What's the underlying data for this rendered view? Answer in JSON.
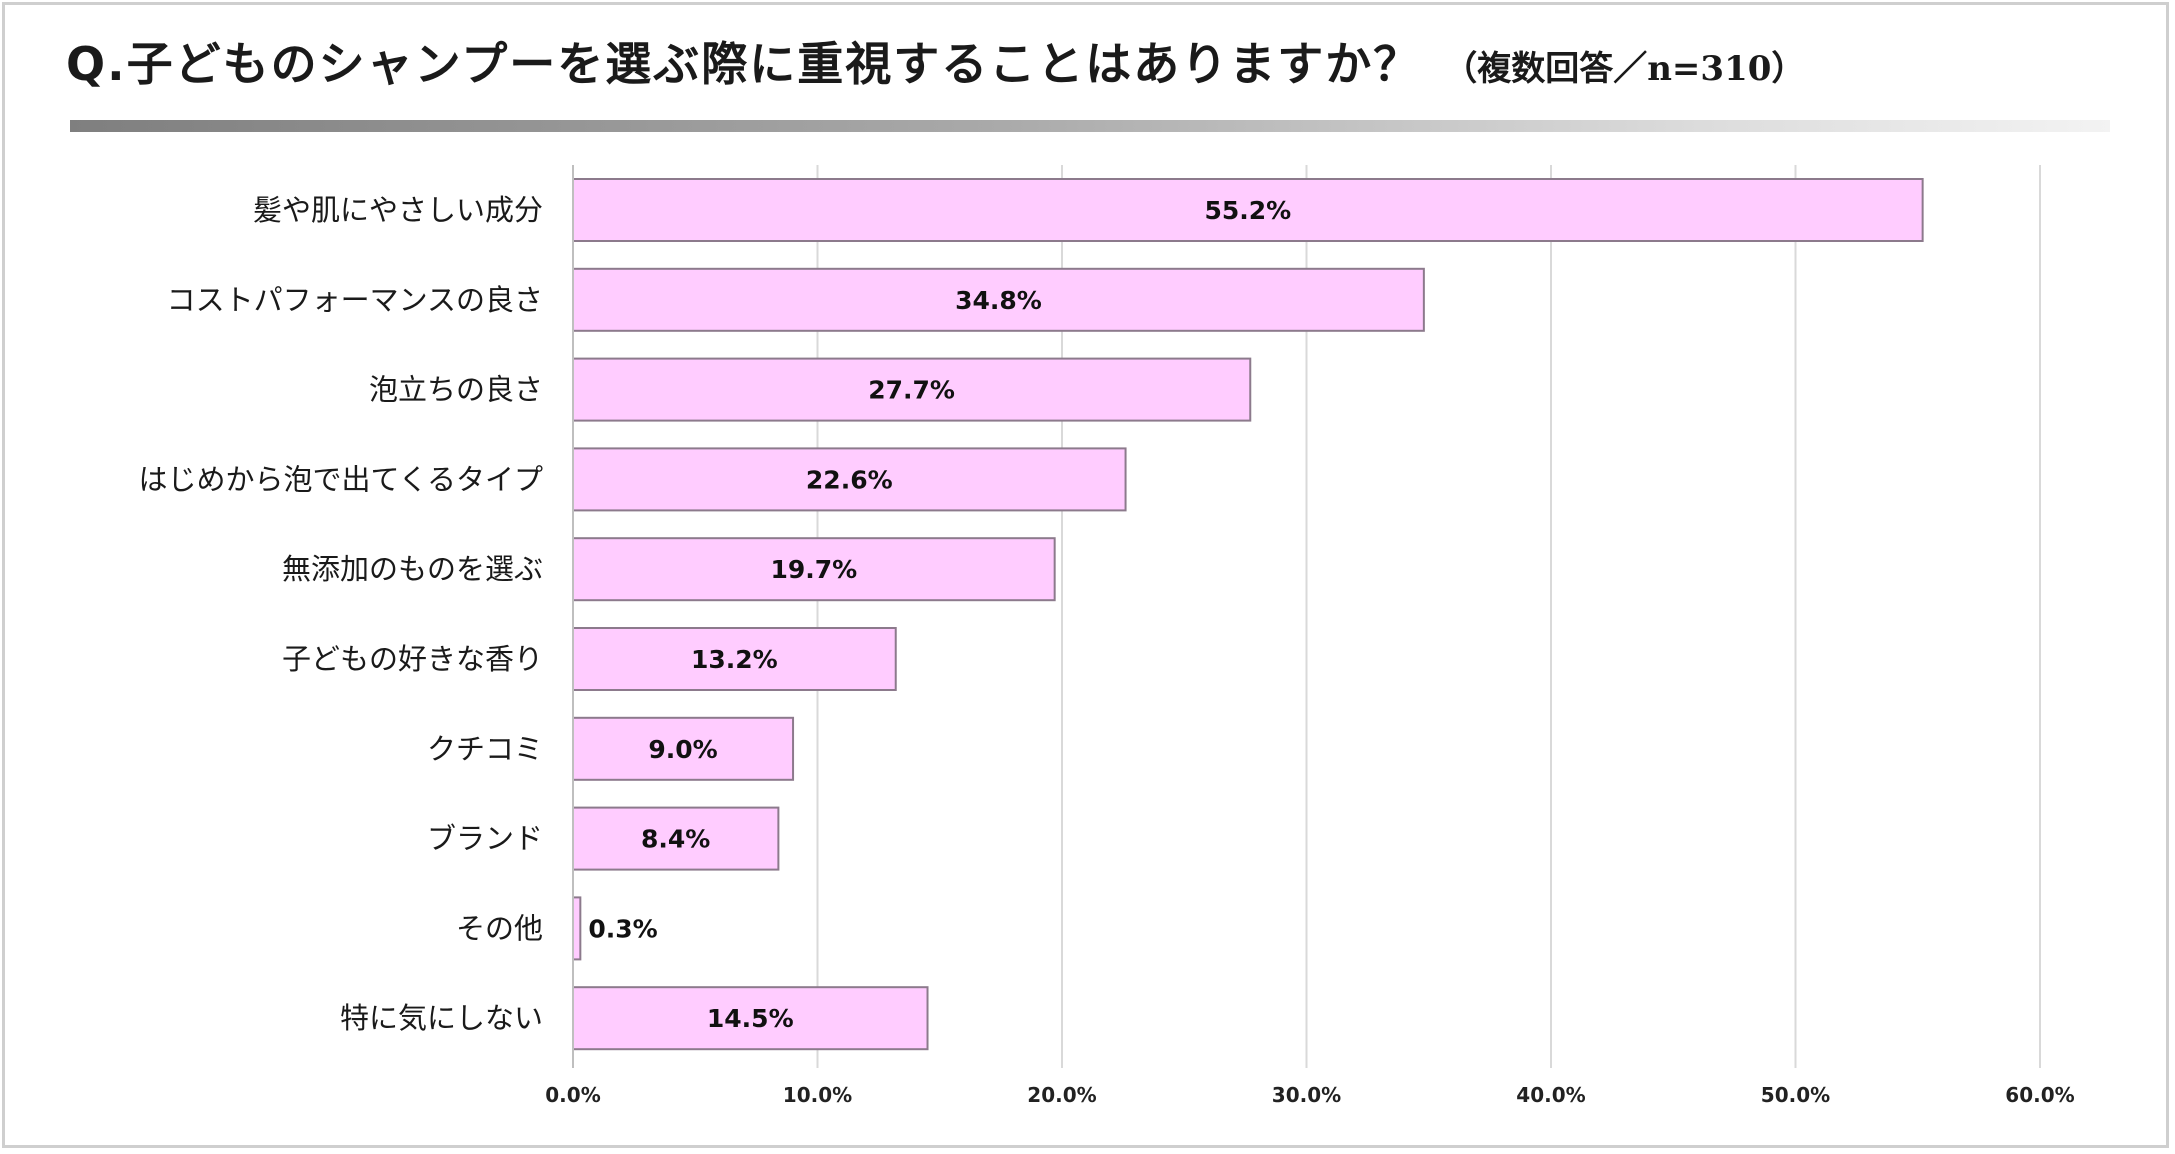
{
  "header": {
    "title": "Q.子どものシャンプーを選ぶ際に重視することはありますか？",
    "subtitle": "（複数回答／n=310）"
  },
  "chart_data": {
    "type": "bar",
    "orientation": "horizontal",
    "title": "Q.子どものシャンプーを選ぶ際に重視することはありますか？",
    "subtitle": "（複数回答／n=310）",
    "categories": [
      "髪や肌にやさしい成分",
      "コストパフォーマンスの良さ",
      "泡立ちの良さ",
      "はじめから泡で出てくるタイプ",
      "無添加のものを選ぶ",
      "子どもの好きな香り",
      "クチコミ",
      "ブランド",
      "その他",
      "特に気にしない"
    ],
    "values": [
      55.2,
      34.8,
      27.7,
      22.6,
      19.7,
      13.2,
      9.0,
      8.4,
      0.3,
      14.5
    ],
    "value_labels": [
      "55.2%",
      "34.8%",
      "27.7%",
      "22.6%",
      "19.7%",
      "13.2%",
      "9.0%",
      "8.4%",
      "0.3%",
      "14.5%"
    ],
    "xlim": [
      0,
      60
    ],
    "xticks": [
      0,
      10,
      20,
      30,
      40,
      50,
      60
    ],
    "xtick_labels": [
      "0.0%",
      "10.0%",
      "20.0%",
      "30.0%",
      "40.0%",
      "50.0%",
      "60.0%"
    ],
    "xlabel": "",
    "ylabel": "",
    "grid": true,
    "legend": "none",
    "colors": {
      "bar_fill": "#ffccff",
      "bar_stroke": "#8c7a8c",
      "grid": "#d9d9d9"
    }
  }
}
